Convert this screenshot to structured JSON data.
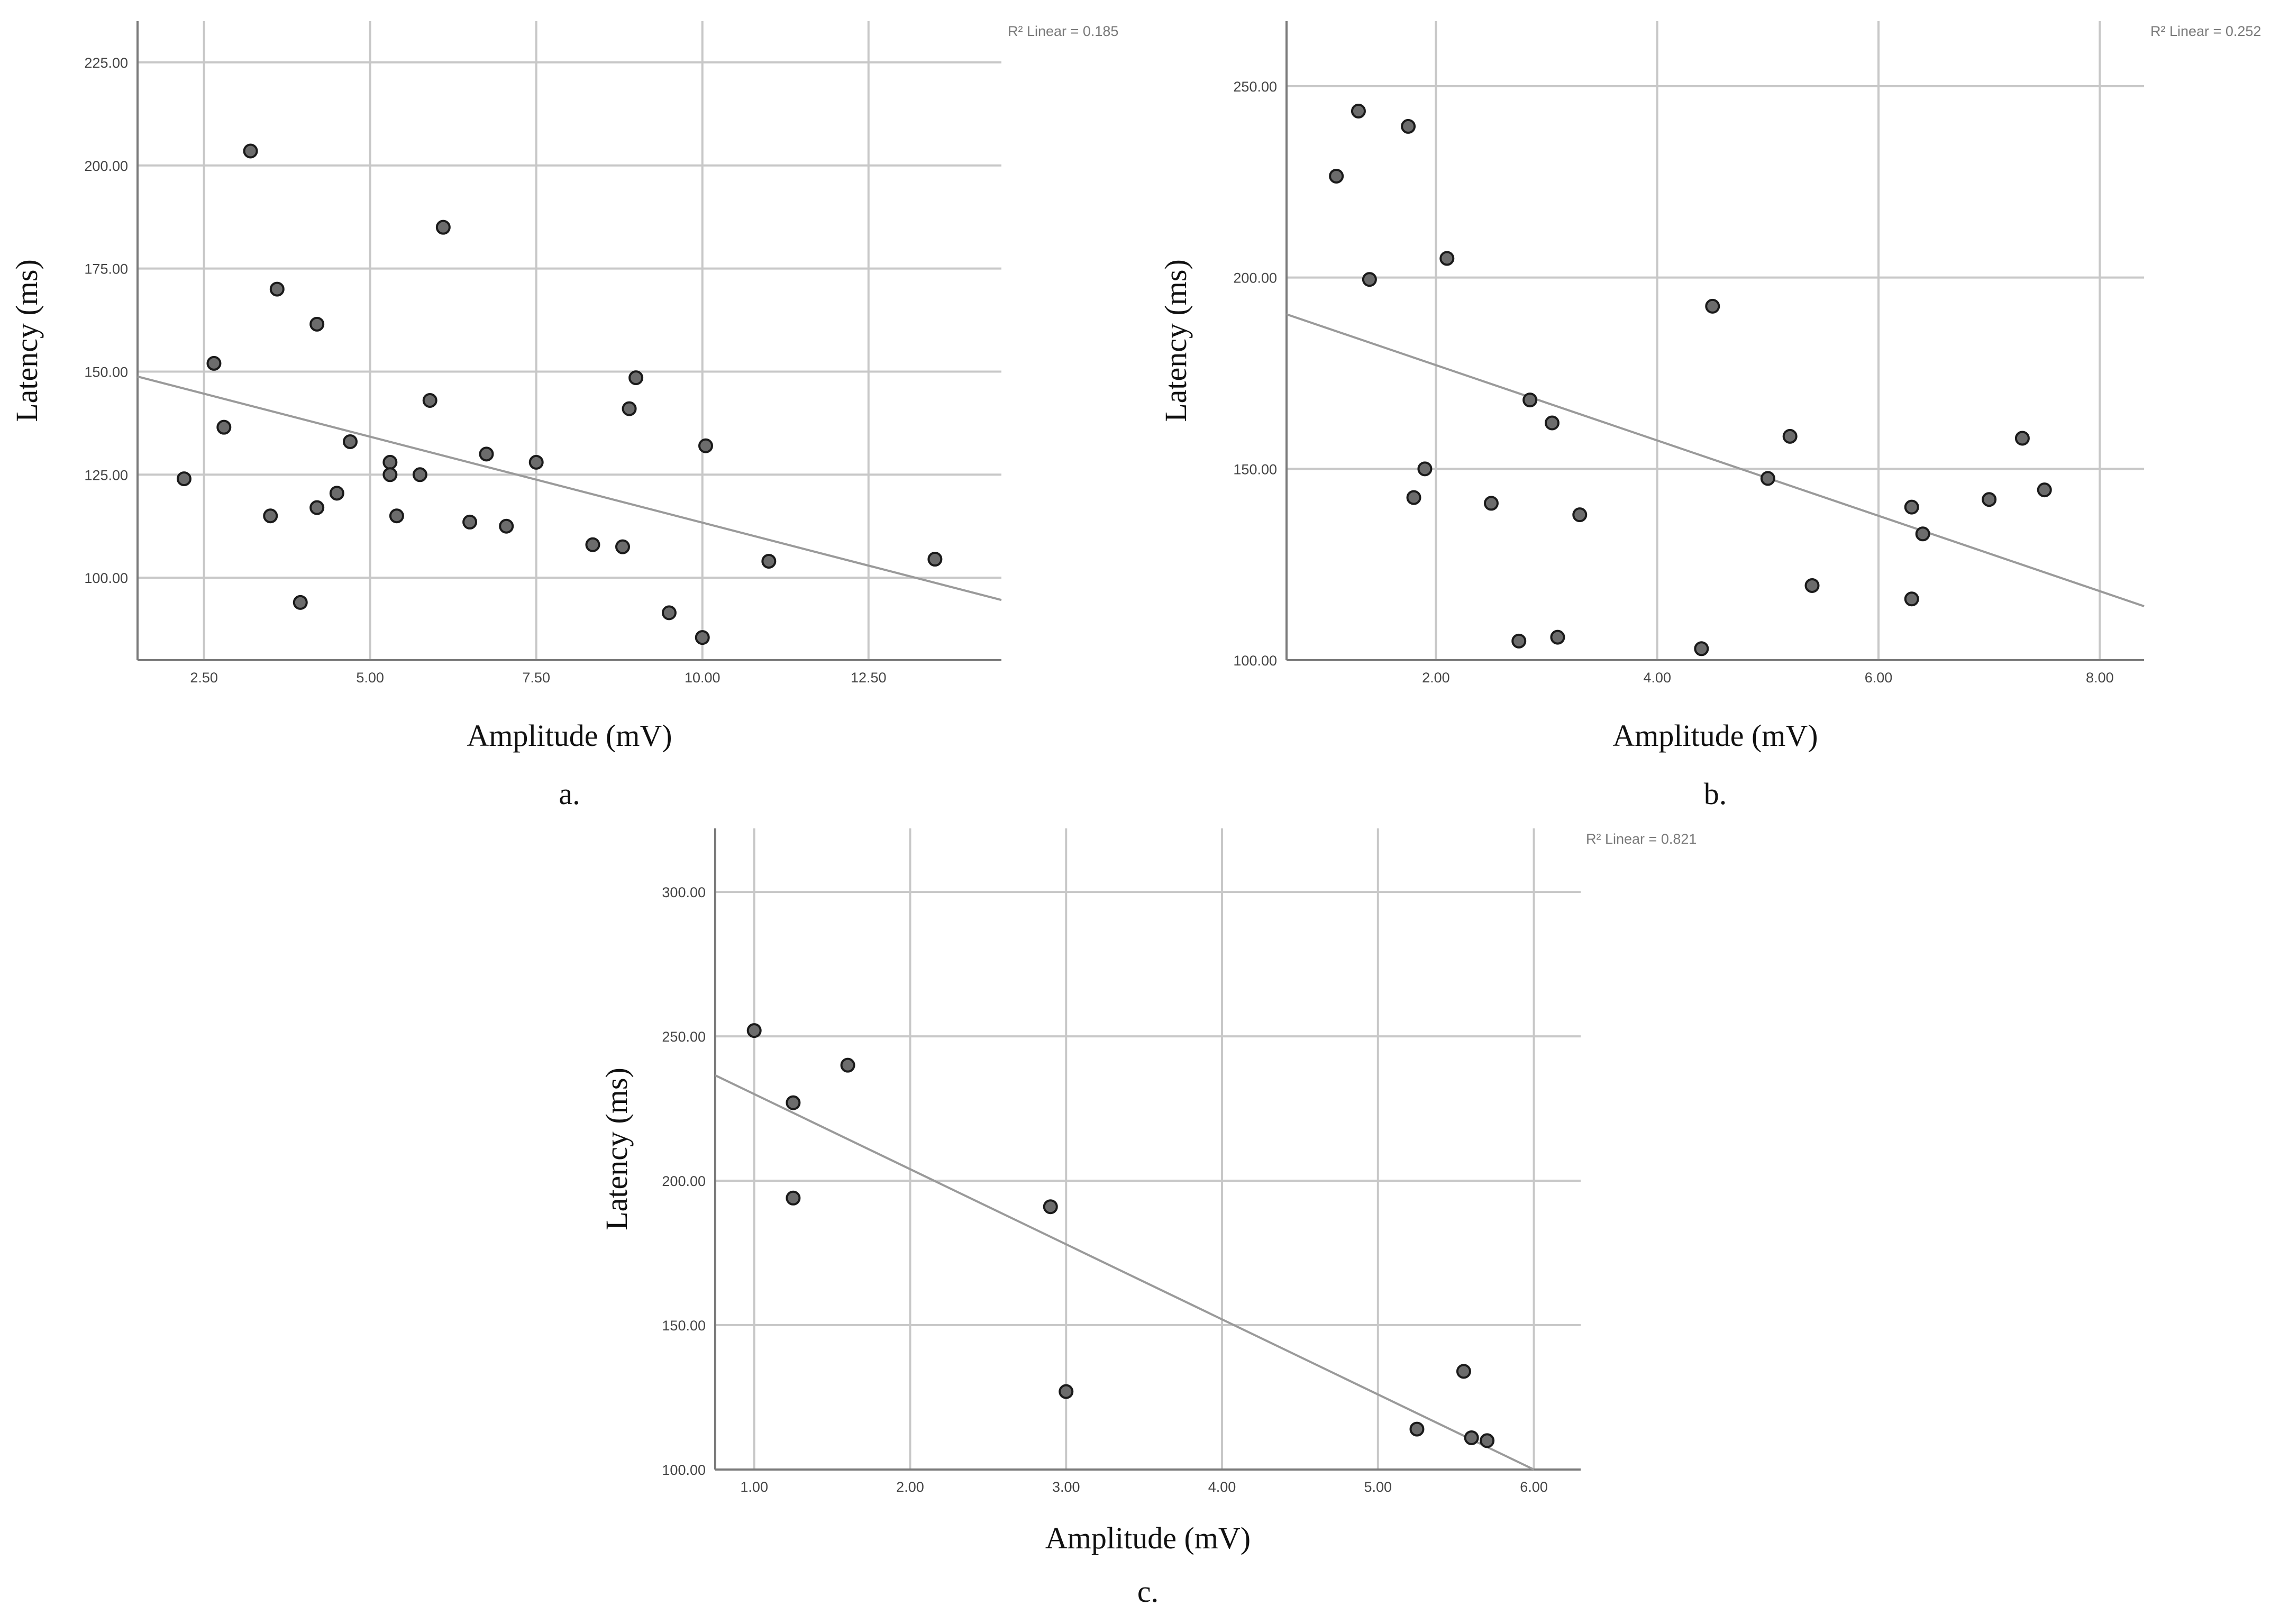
{
  "chart_data": [
    {
      "type": "scatter",
      "panel_label": "a.",
      "xlabel": "Amplitude (mV)",
      "ylabel": "Latency (ms)",
      "xlim": [
        1.5,
        14.5
      ],
      "ylim": [
        80,
        235
      ],
      "xticks": [
        2.5,
        5.0,
        7.5,
        10.0,
        12.5
      ],
      "xtick_labels": [
        "2.50",
        "5.00",
        "7.50",
        "10.00",
        "12.50"
      ],
      "yticks": [
        100,
        125,
        150,
        175,
        200,
        225
      ],
      "ytick_labels": [
        "100.00",
        "125.00",
        "150.00",
        "175.00",
        "200.00",
        "225.00"
      ],
      "grid": true,
      "r2_label": "R² Linear = 0.185",
      "fit_line": {
        "x": [
          1.5,
          14.5
        ],
        "y": [
          148.8,
          94.6
        ]
      },
      "points": [
        [
          2.2,
          124
        ],
        [
          2.65,
          152
        ],
        [
          2.8,
          136.5
        ],
        [
          3.2,
          203.5
        ],
        [
          3.5,
          115
        ],
        [
          3.6,
          170
        ],
        [
          3.95,
          94
        ],
        [
          4.2,
          161.5
        ],
        [
          4.2,
          117
        ],
        [
          4.5,
          120.5
        ],
        [
          4.7,
          133
        ],
        [
          5.3,
          128
        ],
        [
          5.3,
          125
        ],
        [
          5.4,
          115
        ],
        [
          5.75,
          125
        ],
        [
          5.9,
          143
        ],
        [
          6.1,
          185
        ],
        [
          6.5,
          113.5
        ],
        [
          6.75,
          130
        ],
        [
          7.05,
          112.5
        ],
        [
          7.5,
          128
        ],
        [
          8.35,
          108
        ],
        [
          8.8,
          107.5
        ],
        [
          8.9,
          141
        ],
        [
          9.0,
          148.5
        ],
        [
          9.5,
          91.5
        ],
        [
          10.0,
          85.5
        ],
        [
          10.05,
          132
        ],
        [
          11.0,
          104
        ],
        [
          13.5,
          104.5
        ]
      ]
    },
    {
      "type": "scatter",
      "panel_label": "b.",
      "xlabel": "Amplitude (mV)",
      "ylabel": "Latency (ms)",
      "xlim": [
        0.65,
        8.4
      ],
      "ylim": [
        100,
        267
      ],
      "xticks": [
        2,
        4,
        6,
        8
      ],
      "xtick_labels": [
        "2.00",
        "4.00",
        "6.00",
        "8.00"
      ],
      "yticks": [
        100,
        150,
        200,
        250
      ],
      "ytick_labels": [
        "100.00",
        "150.00",
        "200.00",
        "250.00"
      ],
      "grid": true,
      "r2_label": "R² Linear = 0.252",
      "fit_line": {
        "x": [
          0.65,
          8.4
        ],
        "y": [
          190.4,
          114.1
        ]
      },
      "points": [
        [
          1.1,
          226.5
        ],
        [
          1.3,
          243.5
        ],
        [
          1.4,
          199.5
        ],
        [
          1.75,
          239.5
        ],
        [
          1.8,
          142.5
        ],
        [
          1.9,
          150
        ],
        [
          2.1,
          205
        ],
        [
          2.5,
          141
        ],
        [
          2.75,
          105
        ],
        [
          2.85,
          168
        ],
        [
          3.05,
          162
        ],
        [
          3.1,
          106
        ],
        [
          3.3,
          138
        ],
        [
          4.4,
          103
        ],
        [
          4.5,
          192.5
        ],
        [
          5.0,
          147.5
        ],
        [
          5.2,
          158.5
        ],
        [
          5.4,
          119.5
        ],
        [
          6.3,
          140
        ],
        [
          6.3,
          116
        ],
        [
          6.4,
          133
        ],
        [
          7.0,
          142
        ],
        [
          7.3,
          158
        ],
        [
          7.5,
          144.5
        ]
      ]
    },
    {
      "type": "scatter",
      "panel_label": "c.",
      "xlabel": "Amplitude (mV)",
      "ylabel": "Latency (ms)",
      "xlim": [
        0.75,
        6.3
      ],
      "ylim": [
        100,
        322
      ],
      "xticks": [
        1,
        2,
        3,
        4,
        5,
        6
      ],
      "xtick_labels": [
        "1.00",
        "2.00",
        "3.00",
        "4.00",
        "5.00",
        "6.00"
      ],
      "yticks": [
        100,
        150,
        200,
        250,
        300
      ],
      "ytick_labels": [
        "100.00",
        "150.00",
        "200.00",
        "250.00",
        "300.00"
      ],
      "grid": true,
      "r2_label": "R² Linear = 0.821",
      "fit_line": {
        "x": [
          0.75,
          6.0
        ],
        "y": [
          236.5,
          100
        ]
      },
      "points": [
        [
          1.0,
          252
        ],
        [
          1.25,
          227
        ],
        [
          1.25,
          194
        ],
        [
          1.6,
          240
        ],
        [
          2.9,
          191
        ],
        [
          3.0,
          127
        ],
        [
          5.25,
          114
        ],
        [
          5.55,
          134
        ],
        [
          5.6,
          111
        ],
        [
          5.7,
          110
        ]
      ]
    }
  ]
}
